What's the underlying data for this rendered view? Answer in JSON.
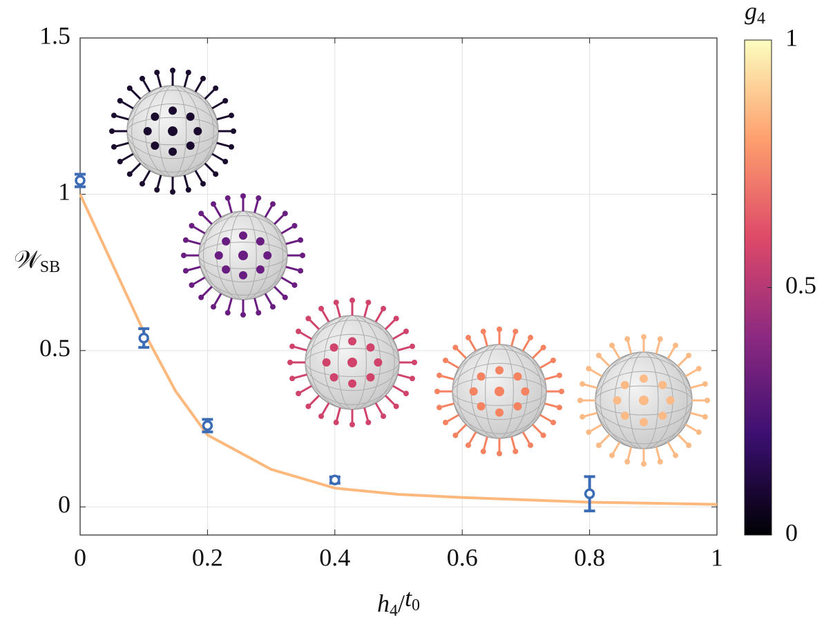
{
  "chart_data": {
    "type": "scatter",
    "x_label": [
      "h",
      "4",
      "/",
      "t",
      "0"
    ],
    "y_label": [
      "𝒲",
      "SB"
    ],
    "xlim": [
      0,
      1
    ],
    "ylim": [
      -0.09,
      1.5
    ],
    "xticks": [
      0,
      0.2,
      0.4,
      0.6,
      0.8,
      1
    ],
    "yticks": [
      0,
      0.5,
      1,
      1.5
    ],
    "grid": true,
    "series": [
      {
        "type": "errorbar",
        "color": "#3b6cb5",
        "x": [
          0,
          0.1,
          0.2,
          0.4,
          0.8
        ],
        "values": [
          1.044,
          0.54,
          0.26,
          0.086,
          0.042
        ],
        "errors": [
          0.02,
          0.03,
          0.02,
          0.01,
          0.055
        ]
      },
      {
        "type": "line",
        "color": "#fdb97d",
        "x": [
          0,
          0.05,
          0.1,
          0.15,
          0.2,
          0.3,
          0.4,
          0.5,
          0.6,
          0.8,
          1
        ],
        "values": [
          1,
          0.78,
          0.56,
          0.37,
          0.23,
          0.12,
          0.06,
          0.04,
          0.03,
          0.015,
          0.008
        ]
      }
    ],
    "colorbar": {
      "label": [
        "g",
        "4"
      ],
      "lim": [
        0,
        1
      ],
      "ticks": [
        0,
        0.5,
        1
      ],
      "colormap": [
        "#000004",
        "#3b0f70",
        "#8c2981",
        "#de4968",
        "#fe9f6d",
        "#fcfdbf"
      ]
    }
  }
}
